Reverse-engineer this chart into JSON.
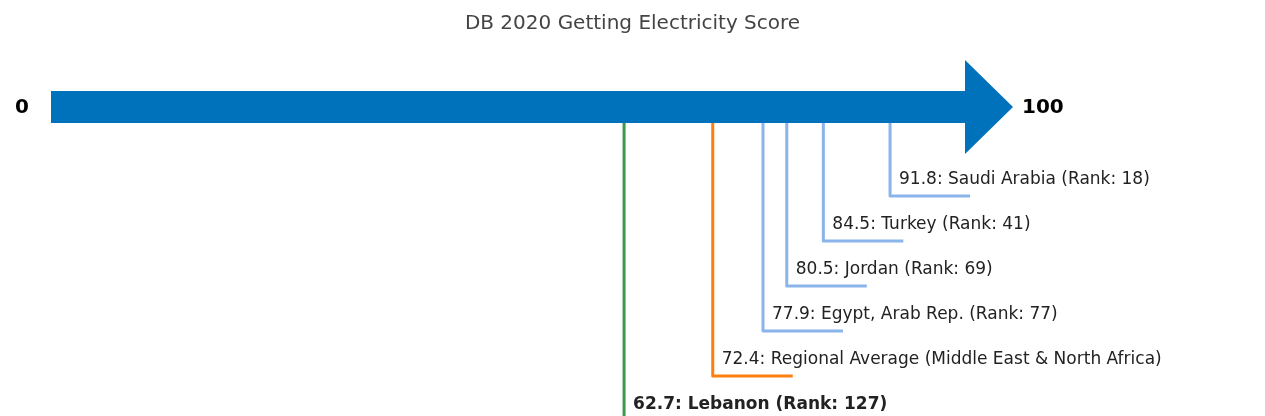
{
  "chart_data": {
    "type": "other",
    "title": "DB 2020 Getting Electricity Score",
    "annotations": [
      "0",
      "100"
    ],
    "values": [
      91.8,
      84.5,
      80.5,
      77.9,
      72.4,
      62.7
    ],
    "value_labels": [
      "91.8: Saudi Arabia (Rank: 18)",
      "84.5: Turkey (Rank: 41)",
      "80.5: Jordan (Rank: 69)",
      "77.9: Egypt, Arab Rep. (Rank: 77)",
      "72.4: Regional Average (Middle East & North Africa)",
      "62.7: Lebanon (Rank: 127)"
    ],
    "colors": [
      "#8ab4ea",
      "#8ab4ea",
      "#8ab4ea",
      "#8ab4ea",
      "#ff7f0e",
      "#3a9a4a"
    ],
    "color": "#0072bc"
  }
}
